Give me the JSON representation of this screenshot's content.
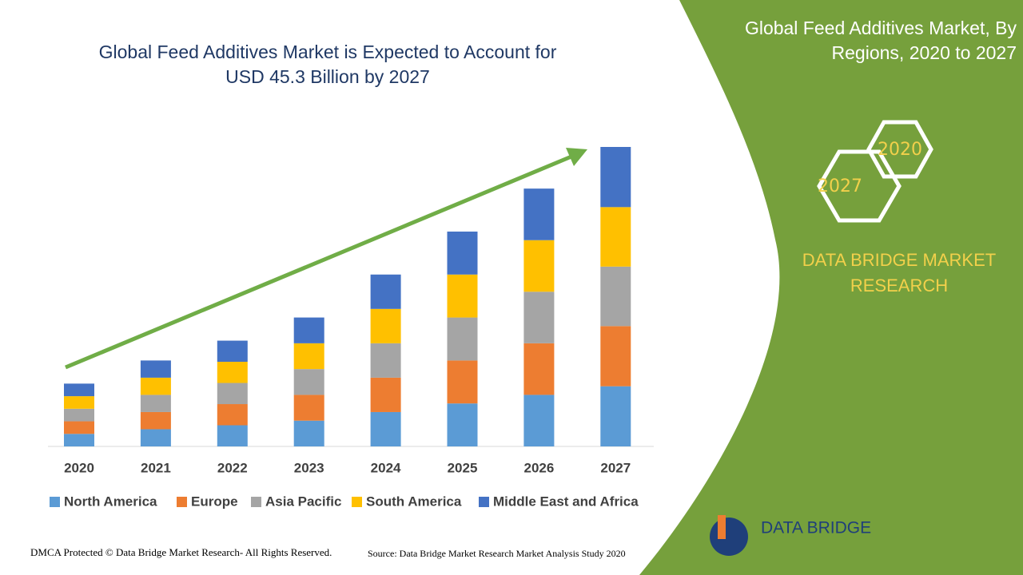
{
  "chart_data": {
    "type": "stacked-bar",
    "title": "Global Feed Additives Market is Expected to Account for USD 45.3 Billion by 2027",
    "categories": [
      "2020",
      "2021",
      "2022",
      "2023",
      "2024",
      "2025",
      "2026",
      "2027"
    ],
    "series": [
      {
        "name": "North America",
        "color": "#5b9bd5",
        "values": [
          1.9,
          2.6,
          3.2,
          3.9,
          5.2,
          6.5,
          7.8,
          9.1
        ]
      },
      {
        "name": "Europe",
        "color": "#ed7d31",
        "values": [
          1.9,
          2.6,
          3.2,
          3.9,
          5.2,
          6.5,
          7.8,
          9.1
        ]
      },
      {
        "name": "Asia Pacific",
        "color": "#a5a5a5",
        "values": [
          1.9,
          2.6,
          3.2,
          3.9,
          5.2,
          6.5,
          7.8,
          9.0
        ]
      },
      {
        "name": "South America",
        "color": "#ffc000",
        "values": [
          1.9,
          2.6,
          3.2,
          3.9,
          5.2,
          6.5,
          7.8,
          9.0
        ]
      },
      {
        "name": "Middle East and Africa",
        "color": "#4472c4",
        "values": [
          1.9,
          2.6,
          3.2,
          3.9,
          5.2,
          6.5,
          7.8,
          9.1
        ]
      }
    ],
    "legend": "bottom"
  },
  "panel": {
    "title": "Global Feed Additives Market, By Regions, 2020 to 2027",
    "hex_start": "2020",
    "hex_end": "2027",
    "brand": "DATA BRIDGE MARKET RESEARCH"
  },
  "footer": {
    "copyright": "DMCA Protected © Data Bridge Market Research- All Rights Reserved.",
    "source": "Source: Data Bridge Market Research Market Analysis Study 2020",
    "logo": "DATA BRIDGE"
  }
}
